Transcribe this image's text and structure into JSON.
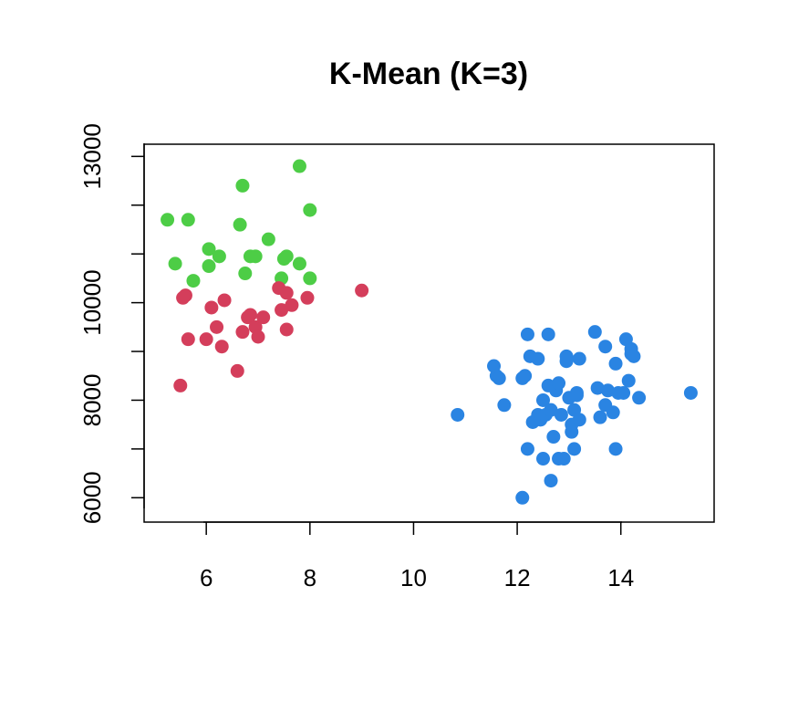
{
  "chart_data": {
    "type": "scatter",
    "title": "K-Mean (K=3)",
    "xlabel": "",
    "ylabel": "",
    "xlim": [
      4.8,
      15.8
    ],
    "ylim": [
      5500,
      13250
    ],
    "xticks": [
      6,
      8,
      10,
      12,
      14
    ],
    "yticks": [
      6000,
      8000,
      10000,
      13000
    ],
    "yticks_minor": [
      7000,
      9000,
      11000,
      12000
    ],
    "grid": false,
    "series": [
      {
        "color": "#4dcd46",
        "points": [
          [
            5.25,
            11700
          ],
          [
            5.65,
            11700
          ],
          [
            5.4,
            10800
          ],
          [
            5.75,
            10450
          ],
          [
            6.05,
            11100
          ],
          [
            6.25,
            10950
          ],
          [
            6.05,
            10750
          ],
          [
            6.65,
            11600
          ],
          [
            6.7,
            12400
          ],
          [
            6.75,
            10600
          ],
          [
            6.85,
            10950
          ],
          [
            6.95,
            10950
          ],
          [
            7.2,
            11300
          ],
          [
            7.45,
            10500
          ],
          [
            7.5,
            10900
          ],
          [
            7.55,
            10950
          ],
          [
            7.8,
            10800
          ],
          [
            7.8,
            12800
          ],
          [
            8.0,
            11900
          ],
          [
            8.0,
            10500
          ]
        ]
      },
      {
        "color": "#d43e5b",
        "points": [
          [
            5.5,
            8300
          ],
          [
            5.55,
            10100
          ],
          [
            5.6,
            10150
          ],
          [
            5.65,
            9250
          ],
          [
            6.0,
            9250
          ],
          [
            6.1,
            9900
          ],
          [
            6.2,
            9500
          ],
          [
            6.3,
            9100
          ],
          [
            6.35,
            10050
          ],
          [
            6.6,
            8600
          ],
          [
            6.7,
            9400
          ],
          [
            6.8,
            9700
          ],
          [
            6.85,
            9750
          ],
          [
            6.95,
            9500
          ],
          [
            7.0,
            9300
          ],
          [
            7.1,
            9700
          ],
          [
            7.4,
            10300
          ],
          [
            7.45,
            9850
          ],
          [
            7.55,
            10200
          ],
          [
            7.55,
            9450
          ],
          [
            7.65,
            9950
          ],
          [
            7.95,
            10100
          ],
          [
            9.0,
            10250
          ]
        ]
      },
      {
        "color": "#2a84e2",
        "points": [
          [
            10.85,
            7700
          ],
          [
            11.55,
            8700
          ],
          [
            11.6,
            8500
          ],
          [
            11.65,
            8450
          ],
          [
            11.75,
            7900
          ],
          [
            12.1,
            8450
          ],
          [
            12.15,
            8500
          ],
          [
            12.1,
            6000
          ],
          [
            12.2,
            7000
          ],
          [
            12.2,
            9350
          ],
          [
            12.25,
            8900
          ],
          [
            12.3,
            7550
          ],
          [
            12.4,
            7700
          ],
          [
            12.4,
            8850
          ],
          [
            12.45,
            7600
          ],
          [
            12.5,
            6800
          ],
          [
            12.5,
            8000
          ],
          [
            12.55,
            7700
          ],
          [
            12.6,
            8300
          ],
          [
            12.6,
            9350
          ],
          [
            12.65,
            6350
          ],
          [
            12.65,
            7800
          ],
          [
            12.7,
            7250
          ],
          [
            12.75,
            8200
          ],
          [
            12.8,
            8350
          ],
          [
            12.8,
            6800
          ],
          [
            12.85,
            7700
          ],
          [
            12.9,
            6800
          ],
          [
            12.95,
            8900
          ],
          [
            12.95,
            8800
          ],
          [
            13.0,
            8050
          ],
          [
            13.05,
            7350
          ],
          [
            13.05,
            7500
          ],
          [
            13.1,
            7800
          ],
          [
            13.1,
            7000
          ],
          [
            13.15,
            8100
          ],
          [
            13.15,
            8150
          ],
          [
            13.2,
            8850
          ],
          [
            13.2,
            7600
          ],
          [
            13.5,
            9400
          ],
          [
            13.55,
            8250
          ],
          [
            13.6,
            7650
          ],
          [
            13.7,
            7900
          ],
          [
            13.7,
            9100
          ],
          [
            13.75,
            8200
          ],
          [
            13.85,
            7750
          ],
          [
            13.9,
            7000
          ],
          [
            13.9,
            8750
          ],
          [
            13.95,
            8150
          ],
          [
            14.05,
            8150
          ],
          [
            14.1,
            9250
          ],
          [
            14.15,
            8400
          ],
          [
            14.2,
            8950
          ],
          [
            14.2,
            9050
          ],
          [
            14.25,
            8900
          ],
          [
            14.35,
            8050
          ],
          [
            15.35,
            8150
          ]
        ]
      }
    ]
  }
}
